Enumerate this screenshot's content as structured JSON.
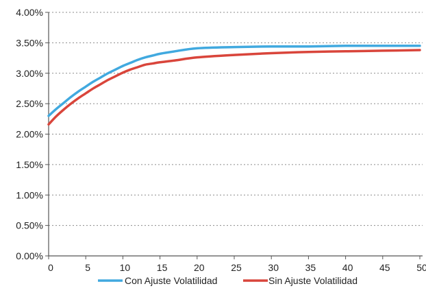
{
  "chart_data": {
    "type": "line",
    "title": "",
    "xlabel": "",
    "ylabel": "",
    "xlim": [
      0,
      50
    ],
    "ylim": [
      0,
      0.04
    ],
    "x_ticks": [
      0,
      5,
      10,
      15,
      20,
      25,
      30,
      35,
      40,
      45,
      50
    ],
    "y_ticks": [
      0,
      0.005,
      0.01,
      0.015,
      0.02,
      0.025,
      0.03,
      0.035,
      0.04
    ],
    "x_tick_labels": [
      "0",
      "5",
      "10",
      "15",
      "20",
      "25",
      "30",
      "35",
      "40",
      "45",
      "50"
    ],
    "y_tick_labels": [
      "0.00%",
      "0.50%",
      "1.00%",
      "1.50%",
      "2.00%",
      "2.50%",
      "3.00%",
      "3.50%",
      "4.00%"
    ],
    "grid": "horizontal-dotted",
    "legend_position": "bottom",
    "series": [
      {
        "name": "Con Ajuste Volatilidad",
        "color": "#41a9df",
        "x": [
          0,
          1,
          2,
          3,
          4,
          5,
          6,
          7,
          8,
          9,
          10,
          11,
          12,
          13,
          14,
          15,
          17,
          20,
          25,
          30,
          35,
          40,
          45,
          50
        ],
        "y": [
          0.023,
          0.0241,
          0.0251,
          0.0261,
          0.027,
          0.0278,
          0.0286,
          0.0293,
          0.03,
          0.0306,
          0.0312,
          0.0317,
          0.0322,
          0.0326,
          0.0329,
          0.0332,
          0.0336,
          0.0341,
          0.0343,
          0.0344,
          0.0344,
          0.0345,
          0.0345,
          0.0345
        ]
      },
      {
        "name": "Sin Ajuste Volatilidad",
        "color": "#d9453b",
        "x": [
          0,
          1,
          2,
          3,
          4,
          5,
          6,
          7,
          8,
          9,
          10,
          11,
          12,
          13,
          14,
          15,
          17,
          20,
          25,
          30,
          35,
          40,
          45,
          50
        ],
        "y": [
          0.0216,
          0.0229,
          0.024,
          0.025,
          0.0259,
          0.0267,
          0.0275,
          0.0282,
          0.0289,
          0.0295,
          0.0301,
          0.0306,
          0.031,
          0.0314,
          0.0316,
          0.0318,
          0.0321,
          0.0326,
          0.033,
          0.0333,
          0.0335,
          0.0336,
          0.0337,
          0.0338
        ]
      }
    ]
  }
}
